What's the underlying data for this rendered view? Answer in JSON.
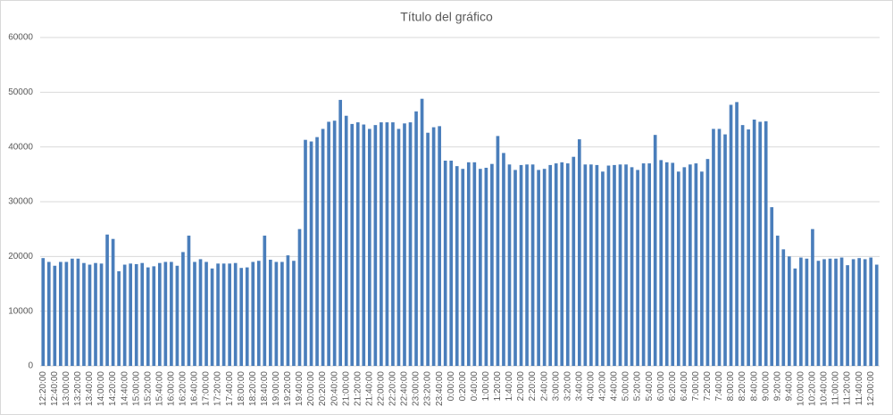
{
  "chart_data": {
    "type": "bar",
    "title": "Título del gráfico",
    "categories": [
      "12:20:00",
      null,
      "12:40:00",
      null,
      "13:00:00",
      null,
      "13:20:00",
      null,
      "13:40:00",
      null,
      "14:00:00",
      null,
      "14:20:00",
      null,
      "14:40:00",
      null,
      "15:00:00",
      null,
      "15:20:00",
      null,
      "15:40:00",
      null,
      "16:00:00",
      null,
      "16:20:00",
      null,
      "16:40:00",
      null,
      "17:00:00",
      null,
      "17:20:00",
      null,
      "17:40:00",
      null,
      "18:00:00",
      null,
      "18:20:00",
      null,
      "18:40:00",
      null,
      "19:00:00",
      null,
      "19:20:00",
      null,
      "19:40:00",
      null,
      "20:00:00",
      null,
      "20:20:00",
      null,
      "20:40:00",
      null,
      "21:00:00",
      null,
      "21:20:00",
      null,
      "21:40:00",
      null,
      "22:00:00",
      null,
      "22:20:00",
      null,
      "22:40:00",
      null,
      "23:00:00",
      null,
      "23:20:00",
      null,
      "23:40:00",
      null,
      "0:00:00",
      null,
      "0:20:00",
      null,
      "0:40:00",
      null,
      "1:00:00",
      null,
      "1:20:00",
      null,
      "1:40:00",
      null,
      "2:00:00",
      null,
      "2:20:00",
      null,
      "2:40:00",
      null,
      "3:00:00",
      null,
      "3:20:00",
      null,
      "3:40:00",
      null,
      "4:00:00",
      null,
      "4:20:00",
      null,
      "4:40:00",
      null,
      "5:00:00",
      null,
      "5:20:00",
      null,
      "5:40:00",
      null,
      "6:00:00",
      null,
      "6:20:00",
      null,
      "6:40:00",
      null,
      "7:00:00",
      null,
      "7:20:00",
      null,
      "7:40:00",
      null,
      "8:00:00",
      null,
      "8:20:00",
      null,
      "8:40:00",
      null,
      "9:00:00",
      null,
      "9:20:00",
      null,
      "9:40:00",
      null,
      "10:00:00",
      null,
      "10:20:00",
      null,
      "10:40:00",
      null,
      "11:00:00",
      null,
      "11:20:00",
      null,
      "11:40:00",
      null,
      "12:00:00",
      null
    ],
    "values": [
      19700,
      19000,
      18300,
      19000,
      19000,
      19600,
      19600,
      18800,
      18500,
      18800,
      18700,
      24000,
      23200,
      17300,
      18500,
      18700,
      18600,
      18800,
      18000,
      18200,
      18800,
      19000,
      19000,
      18300,
      20800,
      23800,
      19000,
      19500,
      19000,
      17800,
      18700,
      18700,
      18700,
      18800,
      17900,
      18000,
      19000,
      19200,
      23800,
      19400,
      19000,
      19000,
      20200,
      19200,
      25000,
      41300,
      41000,
      41800,
      43300,
      44600,
      44800,
      48600,
      45700,
      44200,
      44500,
      44100,
      43300,
      44000,
      44500,
      44500,
      44500,
      43300,
      44300,
      44500,
      46500,
      48800,
      42600,
      43600,
      43800,
      37500,
      37500,
      36500,
      36000,
      37200,
      37200,
      36000,
      36200,
      36900,
      42000,
      38900,
      36800,
      35800,
      36700,
      36800,
      36800,
      35800,
      36000,
      36700,
      37000,
      37200,
      37000,
      38200,
      41400,
      36800,
      36800,
      36700,
      35500,
      36600,
      36700,
      36800,
      36800,
      36300,
      35800,
      37000,
      37000,
      42200,
      37600,
      37200,
      37100,
      35500,
      36300,
      36800,
      37000,
      35500,
      37800,
      43300,
      43300,
      42300,
      47700,
      48200,
      44000,
      43200,
      45000,
      44600,
      44700,
      29000,
      23800,
      21300,
      20000,
      17800,
      19800,
      19600,
      25000,
      19200,
      19500,
      19600,
      19600,
      19800,
      18400,
      19500,
      19700,
      19500,
      19800,
      18500
    ],
    "color": "#4a7ebb",
    "ylim": [
      0,
      60000
    ],
    "yticks": [
      0,
      10000,
      20000,
      30000,
      40000,
      50000,
      60000
    ],
    "grid": true
  }
}
